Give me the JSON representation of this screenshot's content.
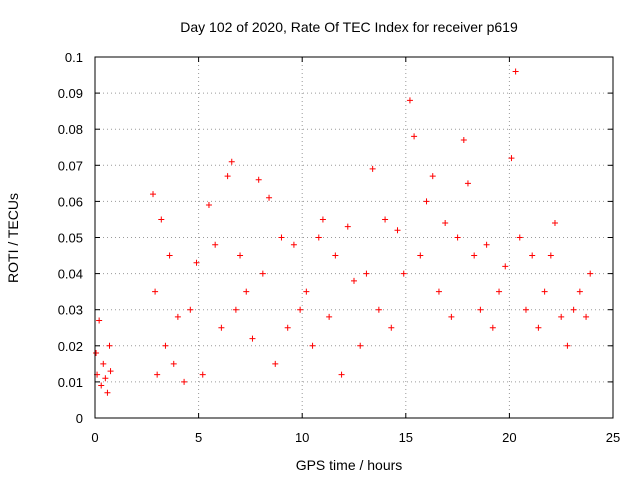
{
  "chart_data": {
    "type": "scatter",
    "title": "Day 102 of 2020, Rate Of TEC Index for receiver p619",
    "xlabel": "GPS time / hours",
    "ylabel": "ROTI / TECUs",
    "xlim": [
      0,
      25
    ],
    "ylim": [
      0,
      0.1
    ],
    "xticks": [
      0,
      5,
      10,
      15,
      20,
      25
    ],
    "yticks": [
      0,
      0.01,
      0.02,
      0.03,
      0.04,
      0.05,
      0.06,
      0.07,
      0.08,
      0.09,
      0.1
    ],
    "xtick_labels": [
      "0",
      "5",
      "10",
      "15",
      "20",
      "25"
    ],
    "ytick_labels": [
      "0",
      "0.01",
      "0.02",
      "0.03",
      "0.04",
      "0.05",
      "0.06",
      "0.07",
      "0.08",
      "0.09",
      "0.1"
    ],
    "grid": true,
    "marker": "+",
    "color": "#ff0000",
    "series": [
      {
        "name": "ROTI",
        "x": [
          0.05,
          0.1,
          0.2,
          0.3,
          0.4,
          0.5,
          0.6,
          0.7,
          0.75,
          2.8,
          2.9,
          3.0,
          3.2,
          3.4,
          3.6,
          3.8,
          4.0,
          4.3,
          4.6,
          4.9,
          5.2,
          5.5,
          5.8,
          6.1,
          6.4,
          6.6,
          6.8,
          7.0,
          7.3,
          7.6,
          7.9,
          8.1,
          8.4,
          8.7,
          9.0,
          9.3,
          9.6,
          9.9,
          10.2,
          10.5,
          10.8,
          11.0,
          11.3,
          11.6,
          11.9,
          12.2,
          12.5,
          12.8,
          13.1,
          13.4,
          13.7,
          14.0,
          14.3,
          14.6,
          14.9,
          15.2,
          15.4,
          15.7,
          16.0,
          16.3,
          16.6,
          16.9,
          17.2,
          17.5,
          17.8,
          18.0,
          18.3,
          18.6,
          18.9,
          19.2,
          19.5,
          19.8,
          20.1,
          20.3,
          20.5,
          20.8,
          21.1,
          21.4,
          21.7,
          22.0,
          22.2,
          22.5,
          22.8,
          23.1,
          23.4,
          23.7,
          23.9
        ],
        "y": [
          0.018,
          0.012,
          0.027,
          0.009,
          0.015,
          0.011,
          0.007,
          0.02,
          0.013,
          0.062,
          0.035,
          0.012,
          0.055,
          0.02,
          0.045,
          0.015,
          0.028,
          0.01,
          0.03,
          0.043,
          0.012,
          0.059,
          0.048,
          0.025,
          0.067,
          0.071,
          0.03,
          0.045,
          0.035,
          0.022,
          0.066,
          0.04,
          0.061,
          0.015,
          0.05,
          0.025,
          0.048,
          0.03,
          0.035,
          0.02,
          0.05,
          0.055,
          0.028,
          0.045,
          0.012,
          0.053,
          0.038,
          0.02,
          0.04,
          0.069,
          0.03,
          0.055,
          0.025,
          0.052,
          0.04,
          0.088,
          0.078,
          0.045,
          0.06,
          0.067,
          0.035,
          0.054,
          0.028,
          0.05,
          0.077,
          0.065,
          0.045,
          0.03,
          0.048,
          0.025,
          0.035,
          0.042,
          0.072,
          0.096,
          0.05,
          0.03,
          0.045,
          0.025,
          0.035,
          0.045,
          0.054,
          0.028,
          0.02,
          0.03,
          0.035,
          0.028,
          0.04
        ]
      }
    ]
  }
}
